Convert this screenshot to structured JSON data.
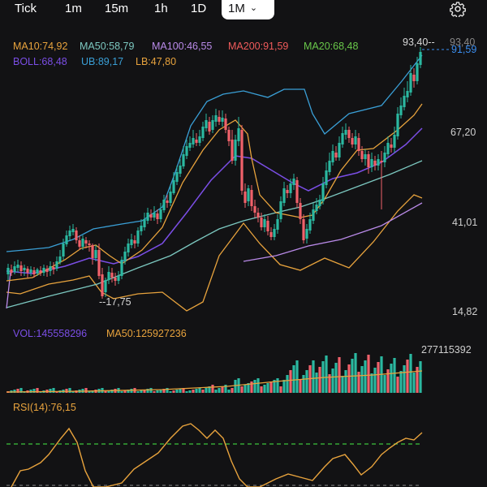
{
  "timeframes": [
    {
      "label": "Tick",
      "active": false
    },
    {
      "label": "1m",
      "active": false
    },
    {
      "label": "15m",
      "active": false
    },
    {
      "label": "1h",
      "active": false
    },
    {
      "label": "1D",
      "active": false
    },
    {
      "label": "1M",
      "active": true
    }
  ],
  "icons": {
    "settings": "gear-icon",
    "dropdown": "chevron-down-icon"
  },
  "indicators": {
    "ma10": "MA10:74,92",
    "ma50": "MA50:58,79",
    "ma100": "MA100:46,55",
    "ma200": "MA200:91,59",
    "ma20": "MA20:68,48",
    "boll": "BOLL:68,48",
    "ub": "UB:89,17",
    "lb": "LB:47,80"
  },
  "price_axis": {
    "top_partial": "93,40",
    "current": "91,59",
    "ticks": [
      "67,20",
      "41,01",
      "14,82"
    ],
    "high_marker": "93,40",
    "low_marker": "17,75"
  },
  "volume": {
    "vol_label": "VOL:145558296",
    "ma50_label": "MA50:125927236",
    "max_label": "277115392"
  },
  "rsi": {
    "label": "RSI(14):76,15"
  },
  "colors": {
    "up": "#2bb8a1",
    "down": "#f0616a",
    "ma10": "#e8a33d",
    "ma50": "#7cc8c0",
    "ma100": "#b98ae8",
    "ma200": "#f05b5b",
    "ma20": "#69c84a",
    "boll": "#7b4ee6",
    "ub": "#3a9fd6",
    "lb": "#e8a33d",
    "price_line": "#3a8ef0",
    "rsi_line": "#e8a33d",
    "rsi_level": "#3cc43c"
  }
}
